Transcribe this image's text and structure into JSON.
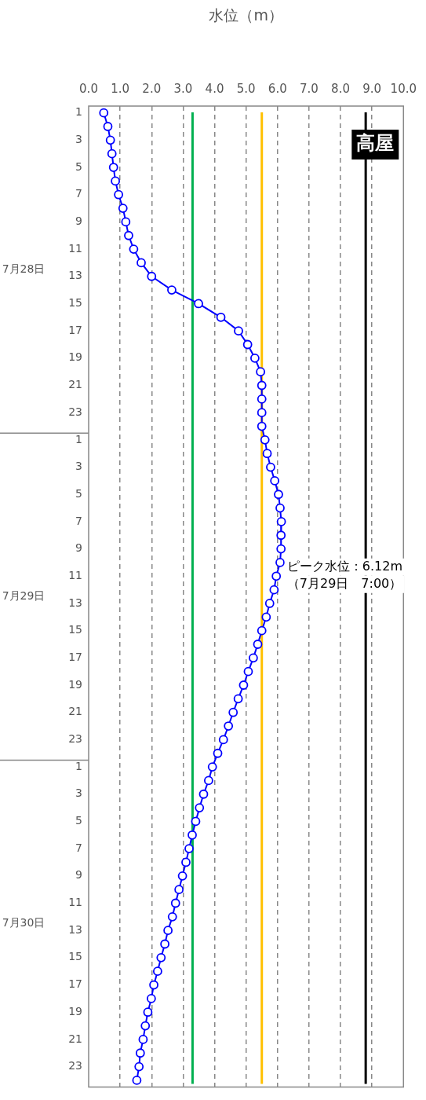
{
  "chart_data": {
    "type": "line",
    "title": "高屋",
    "xlabel": "水位（m）",
    "orientation": "horizontal",
    "categories": [
      "1",
      null,
      "3",
      null,
      "5",
      null,
      "7",
      null,
      "9",
      null,
      "11",
      null,
      "13",
      null,
      "15",
      null,
      "17",
      null,
      "19",
      null,
      "21",
      null,
      "23",
      null,
      "1",
      null,
      "3",
      null,
      "5",
      null,
      "7",
      null,
      "9",
      null,
      "11",
      null,
      "13",
      null,
      "15",
      null,
      "17",
      null,
      "19",
      null,
      "21",
      null,
      "23",
      null,
      "1",
      null,
      "3",
      null,
      "5",
      null,
      "7",
      null,
      "9",
      null,
      "11",
      null,
      "13",
      null,
      "15",
      null,
      "17",
      null,
      "19",
      null,
      "21",
      null,
      "23",
      null
    ],
    "series": [
      {
        "color": "#0000ff",
        "values": [
          0.48,
          0.61,
          0.69,
          0.74,
          0.79,
          0.85,
          0.95,
          1.09,
          1.18,
          1.27,
          1.43,
          1.67,
          2.0,
          2.64,
          3.49,
          4.2,
          4.76,
          5.05,
          5.28,
          5.46,
          5.5,
          5.5,
          5.5,
          5.5,
          5.6,
          5.67,
          5.78,
          5.91,
          6.03,
          6.08,
          6.12,
          6.11,
          6.11,
          6.08,
          5.96,
          5.89,
          5.75,
          5.64,
          5.5,
          5.37,
          5.23,
          5.07,
          4.92,
          4.75,
          4.59,
          4.44,
          4.28,
          4.1,
          3.93,
          3.81,
          3.65,
          3.52,
          3.4,
          3.29,
          3.19,
          3.09,
          2.98,
          2.87,
          2.76,
          2.66,
          2.52,
          2.42,
          2.3,
          2.19,
          2.07,
          1.99,
          1.88,
          1.8,
          1.73,
          1.64,
          1.6,
          1.53
        ]
      }
    ],
    "xlim": [
      0,
      10
    ],
    "xticks": [
      {
        "value": 0,
        "label": "0.0"
      },
      {
        "value": 1,
        "label": "1.0"
      },
      {
        "value": 2,
        "label": "2.0"
      },
      {
        "value": 3,
        "label": "3.0"
      },
      {
        "value": 4,
        "label": "4.0"
      },
      {
        "value": 5,
        "label": "5.0"
      },
      {
        "value": 6,
        "label": "6.0"
      },
      {
        "value": 7,
        "label": "7.0"
      },
      {
        "value": 8,
        "label": "8.0"
      },
      {
        "value": 9,
        "label": "9.0"
      },
      {
        "value": 10,
        "label": "10.0"
      }
    ],
    "grid": "x",
    "marker": "circle",
    "legend": false,
    "ref_lines": [
      {
        "axis": "x",
        "value": 3.3,
        "color": "#00b050"
      },
      {
        "axis": "x",
        "value": 5.5,
        "color": "#ffc000"
      },
      {
        "axis": "x",
        "value": 8.8,
        "color": "#000000"
      }
    ],
    "annotations": [
      "7月28日",
      "7月29日",
      "7月30日",
      "ピーク水位：6.12m（7月29日　7:00）"
    ]
  }
}
